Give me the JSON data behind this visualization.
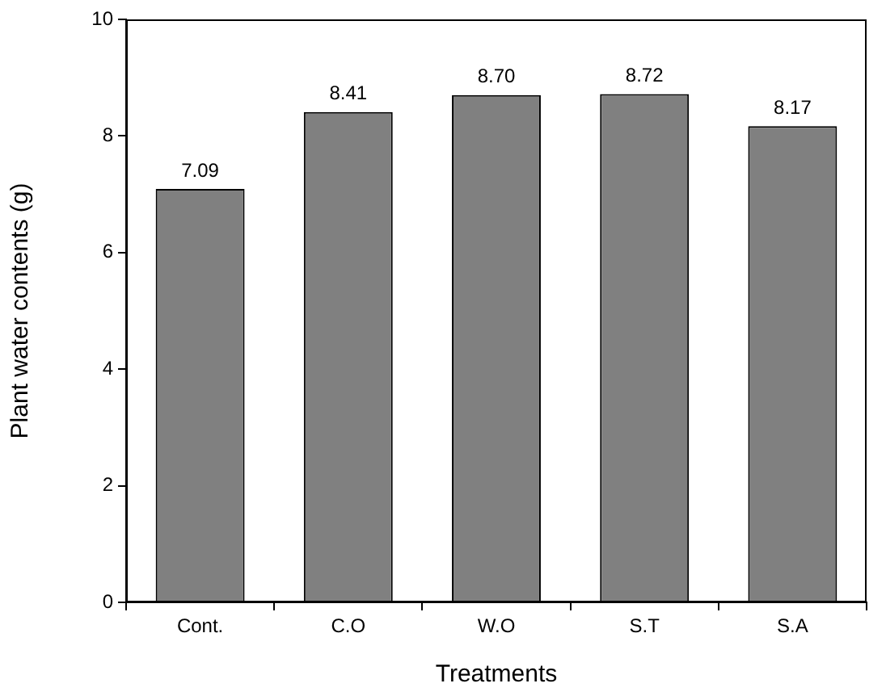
{
  "chart_data": {
    "type": "bar",
    "xlabel": "Treatments",
    "ylabel": "Plant water contents (g)",
    "categories": [
      "Cont.",
      "C.O",
      "W.O",
      "S.T",
      "S.A"
    ],
    "values": [
      7.09,
      8.41,
      8.7,
      8.72,
      8.17
    ],
    "value_labels": [
      "7.09",
      "8.41",
      "8.70",
      "8.72",
      "8.17"
    ],
    "color": "#808080",
    "ylim": [
      0,
      10
    ],
    "yticks": [
      0,
      2,
      4,
      6,
      8,
      10
    ],
    "grid": false,
    "legend": false
  }
}
